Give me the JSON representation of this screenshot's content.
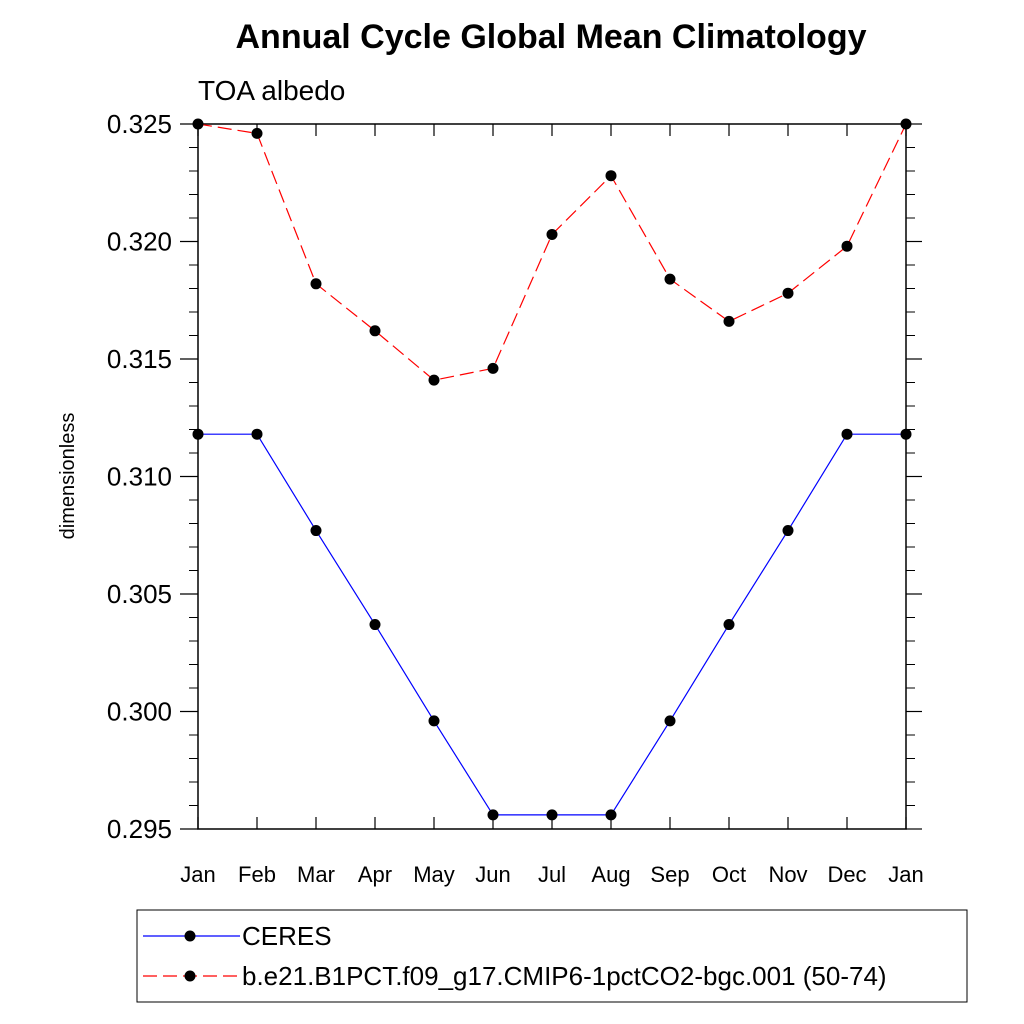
{
  "chart_data": {
    "type": "line",
    "title": "Annual Cycle Global Mean Climatology",
    "subtitle": "TOA albedo",
    "ylabel": "dimensionless",
    "xlabel": "",
    "categories": [
      "Jan",
      "Feb",
      "Mar",
      "Apr",
      "May",
      "Jun",
      "Jul",
      "Aug",
      "Sep",
      "Oct",
      "Nov",
      "Dec",
      "Jan"
    ],
    "ylim": [
      0.295,
      0.325
    ],
    "yticks": [
      "0.295",
      "0.300",
      "0.305",
      "0.310",
      "0.315",
      "0.320",
      "0.325"
    ],
    "ytick_values": [
      0.295,
      0.3,
      0.305,
      0.31,
      0.315,
      0.32,
      0.325
    ],
    "series": [
      {
        "name": "CERES",
        "color": "#0000ff",
        "dash": "solid",
        "values": [
          0.3118,
          0.3118,
          0.3077,
          0.3037,
          0.2996,
          0.2956,
          0.2956,
          0.2956,
          0.2996,
          0.3037,
          0.3077,
          0.3118,
          0.3118
        ]
      },
      {
        "name": "b.e21.B1PCT.f09_g17.CMIP6-1pctCO2-bgc.001 (50-74)",
        "color": "#ff0000",
        "dash": "dashed",
        "values": [
          0.325,
          0.3246,
          0.3182,
          0.3162,
          0.3141,
          0.3146,
          0.3203,
          0.3228,
          0.3184,
          0.3166,
          0.3178,
          0.3198,
          0.325
        ]
      }
    ],
    "legend_position": "bottom"
  }
}
